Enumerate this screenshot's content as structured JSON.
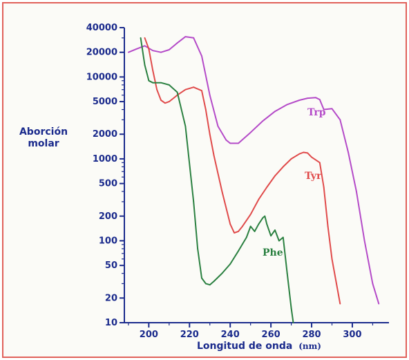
{
  "chart_data": {
    "type": "line",
    "title": "",
    "xlabel": "Longitud de onda",
    "xlabel_unit": "(nm)",
    "ylabel": "Aborción molar",
    "yscale": "log",
    "xlim": [
      188,
      318
    ],
    "ylim": [
      10,
      40000
    ],
    "x_ticks": [
      200,
      220,
      240,
      260,
      280,
      300
    ],
    "y_ticks": [
      10,
      20,
      50,
      100,
      200,
      500,
      1000,
      2000,
      5000,
      10000,
      20000,
      40000
    ],
    "grid": false,
    "legend": "labels placed next to each curve",
    "series": [
      {
        "name": "Trp",
        "color": "#b44ac8",
        "x": [
          190,
          194,
          198,
          202,
          206,
          210,
          214,
          218,
          222,
          226,
          230,
          234,
          238,
          240,
          244,
          250,
          256,
          262,
          268,
          274,
          278,
          282,
          284,
          286,
          290,
          294,
          298,
          302,
          306,
          310,
          313
        ],
        "y": [
          20000,
          22000,
          24000,
          21000,
          20000,
          21500,
          26000,
          31000,
          30000,
          18000,
          6000,
          2500,
          1700,
          1550,
          1550,
          2100,
          2900,
          3800,
          4600,
          5200,
          5500,
          5600,
          5300,
          4000,
          4100,
          3000,
          1200,
          400,
          100,
          30,
          17
        ]
      },
      {
        "name": "Tyr",
        "color": "#e04a4a",
        "x": [
          198,
          200,
          202,
          204,
          206,
          208,
          210,
          214,
          218,
          222,
          226,
          228,
          230,
          232,
          236,
          240,
          242,
          244,
          246,
          250,
          254,
          258,
          262,
          266,
          270,
          274,
          276,
          278,
          280,
          284,
          286,
          288,
          290,
          294
        ],
        "y": [
          30000,
          22000,
          12000,
          7000,
          5200,
          4800,
          5000,
          6000,
          7000,
          7500,
          6800,
          4000,
          2000,
          1100,
          400,
          160,
          125,
          130,
          150,
          210,
          320,
          450,
          620,
          800,
          1000,
          1150,
          1200,
          1180,
          1050,
          900,
          450,
          150,
          60,
          17
        ]
      },
      {
        "name": "Phe",
        "color": "#2a8040",
        "x": [
          196,
          198,
          200,
          202,
          206,
          210,
          214,
          218,
          222,
          224,
          226,
          228,
          230,
          232,
          236,
          240,
          244,
          248,
          250,
          252,
          254,
          256,
          257,
          258,
          260,
          262,
          264,
          266,
          268,
          270,
          271
        ],
        "y": [
          30000,
          14000,
          9000,
          8500,
          8500,
          8000,
          6500,
          2500,
          300,
          80,
          35,
          30,
          29,
          32,
          40,
          52,
          75,
          110,
          150,
          130,
          160,
          190,
          200,
          160,
          115,
          135,
          100,
          110,
          40,
          15,
          10
        ]
      }
    ]
  }
}
